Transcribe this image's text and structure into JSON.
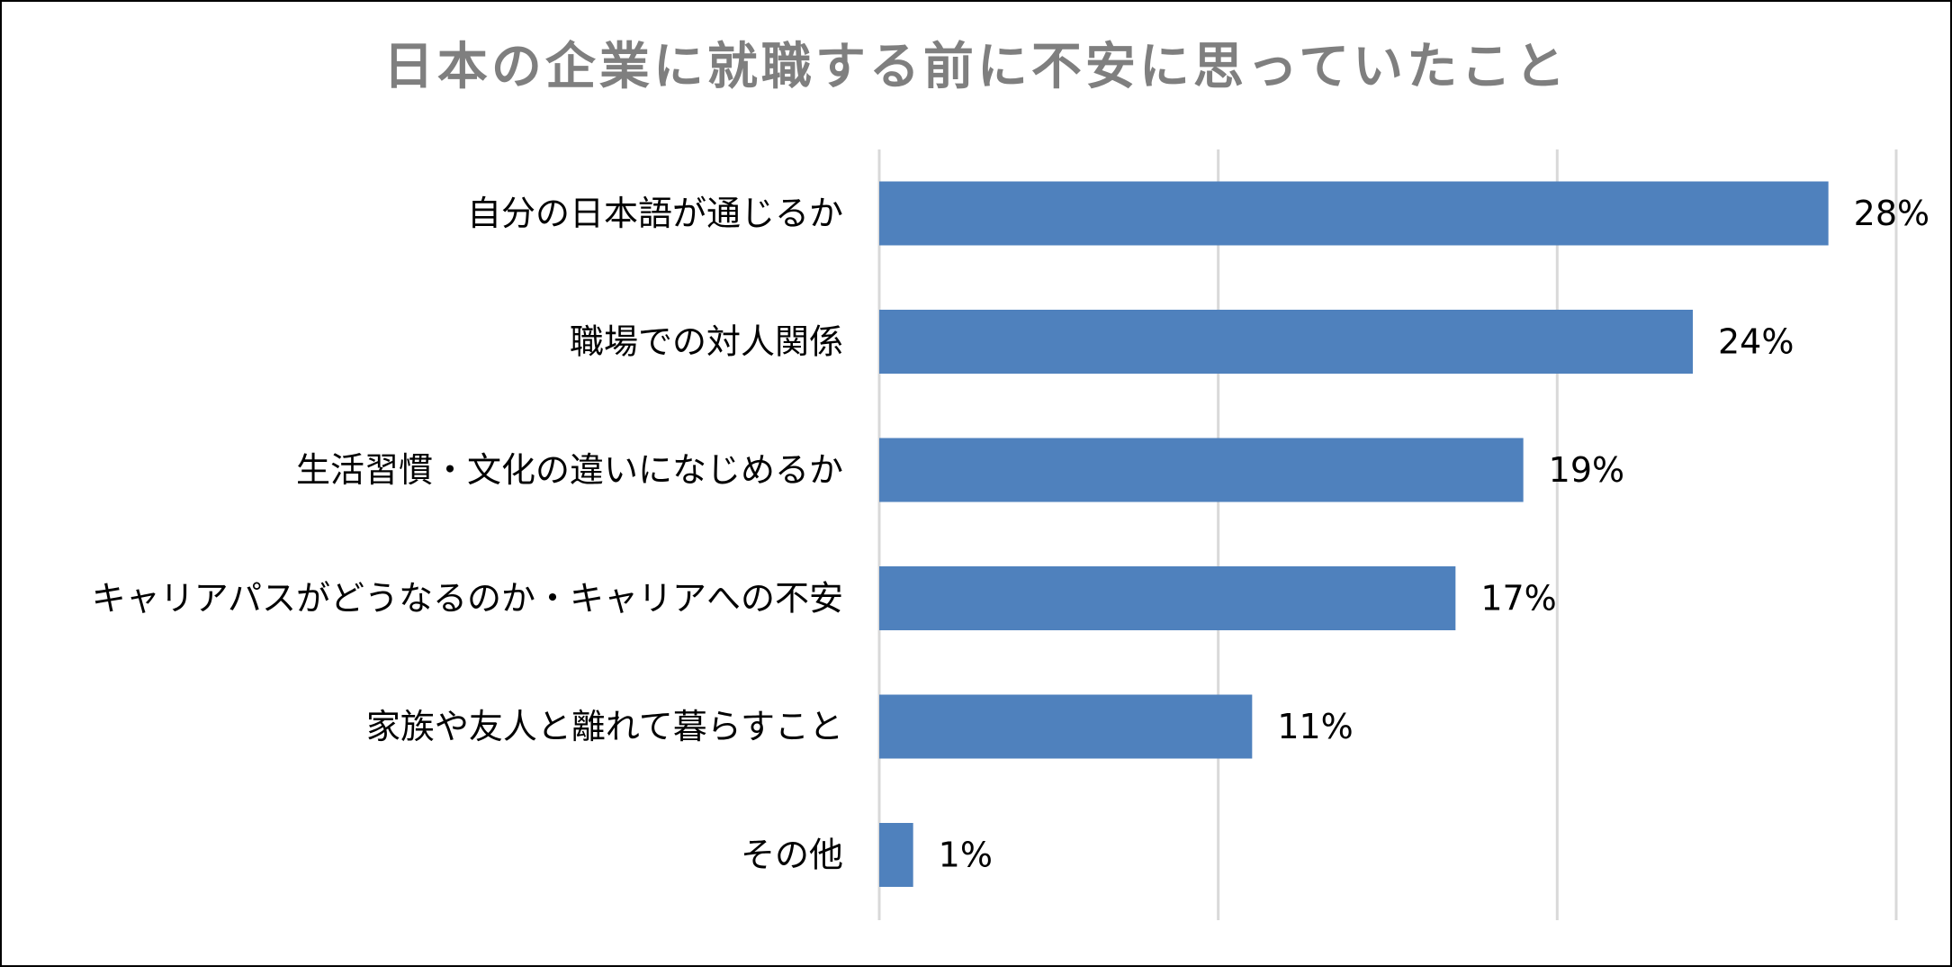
{
  "chart_data": {
    "type": "bar",
    "orientation": "horizontal",
    "title": "日本の企業に就職する前に不安に思っていたこと",
    "categories": [
      "自分の日本語が通じるか",
      "職場での対人関係",
      "生活習慣・文化の違いになじめるか",
      "キャリアパスがどうなるのか・キャリアへの不安",
      "家族や友人と離れて暮らすこと",
      "その他"
    ],
    "values": [
      28,
      24,
      19,
      17,
      11,
      1
    ],
    "value_labels": [
      "28%",
      "24%",
      "19%",
      "17%",
      "11%",
      "1%"
    ],
    "unit": "%",
    "xlim": [
      0,
      30
    ],
    "gridlines": [
      0,
      10,
      20,
      30
    ],
    "grid": true,
    "legend": "none",
    "bar_color": "#4f81bd",
    "grid_color": "#d9d9d9",
    "title_color": "#7f7f7f"
  }
}
